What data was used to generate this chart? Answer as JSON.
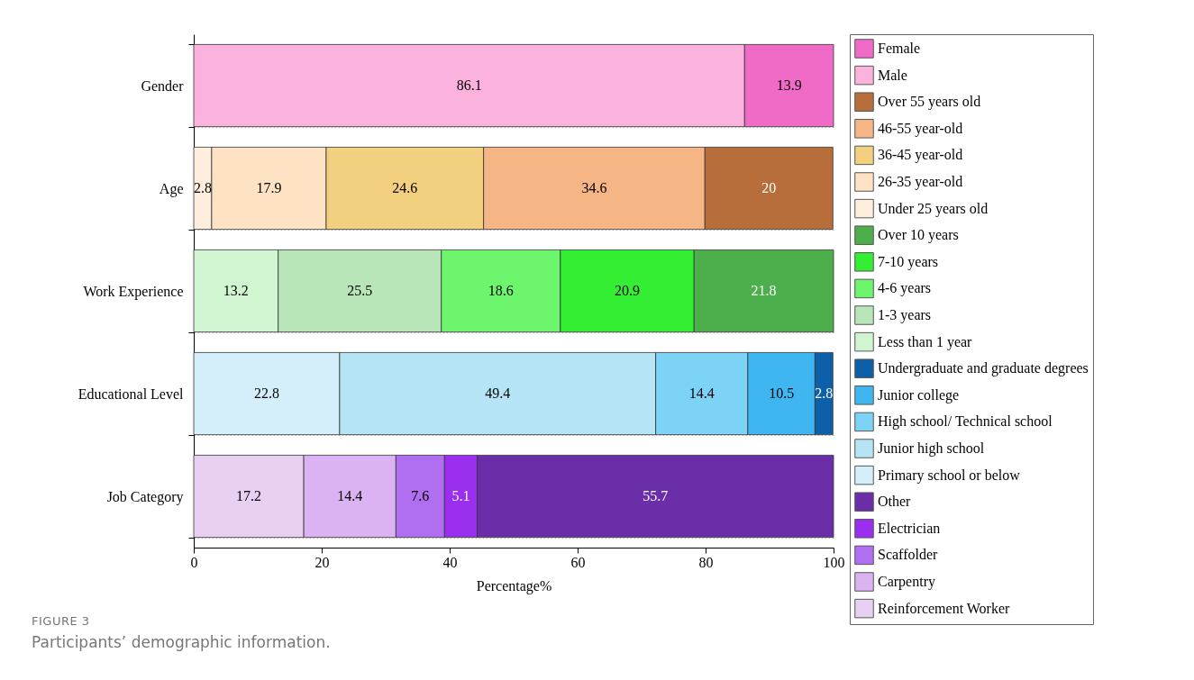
{
  "chart_data": {
    "type": "bar",
    "orientation": "horizontal",
    "stacked": true,
    "data_labels": true,
    "legend": "right",
    "grid": "y",
    "xlabel": "Percentage%",
    "categories": [
      "Gender",
      "Age",
      "Work Experience",
      "Educational Level",
      "Job Category"
    ],
    "xlim": [
      0,
      100
    ],
    "xticks": [
      0,
      20,
      40,
      60,
      80,
      100
    ],
    "annotations": [
      "FIGURE 3",
      "Participants’ demographic information."
    ],
    "series": [
      {
        "name": "Male",
        "color": "#fbb3dd",
        "values": [
          86.1,
          null,
          null,
          null,
          null
        ]
      },
      {
        "name": "Female",
        "color": "#f06bc8",
        "values": [
          13.9,
          null,
          null,
          null,
          null
        ]
      },
      {
        "name": "Under 25 years old",
        "color": "#fdeedd",
        "values": [
          null,
          2.8,
          null,
          null,
          null
        ]
      },
      {
        "name": "26-35 year-old",
        "color": "#fde3c4",
        "values": [
          null,
          17.9,
          null,
          null,
          null
        ]
      },
      {
        "name": "36-45 year-old",
        "color": "#f2d080",
        "values": [
          null,
          24.6,
          null,
          null,
          null
        ]
      },
      {
        "name": "46-55 year-old",
        "color": "#f5b585",
        "values": [
          null,
          34.6,
          null,
          null,
          null
        ]
      },
      {
        "name": "Over 55 years old",
        "color": "#b86e3a",
        "values": [
          null,
          20,
          null,
          null,
          null
        ]
      },
      {
        "name": "Less than 1 year",
        "color": "#d0f5d0",
        "values": [
          null,
          null,
          13.2,
          null,
          null
        ]
      },
      {
        "name": "1-3 years",
        "color": "#b8e6b8",
        "values": [
          null,
          null,
          25.5,
          null,
          null
        ]
      },
      {
        "name": "4-6 years",
        "color": "#6df56d",
        "values": [
          null,
          null,
          18.6,
          null,
          null
        ]
      },
      {
        "name": "7-10 years",
        "color": "#33ee33",
        "values": [
          null,
          null,
          20.9,
          null,
          null
        ]
      },
      {
        "name": "Over 10 years",
        "color": "#4caf4c",
        "values": [
          null,
          null,
          21.8,
          null,
          null
        ]
      },
      {
        "name": "Primary school or below",
        "color": "#d5effa",
        "values": [
          null,
          null,
          null,
          22.8,
          null
        ]
      },
      {
        "name": "Junior high school",
        "color": "#b5e5f5",
        "values": [
          null,
          null,
          null,
          49.4,
          null
        ]
      },
      {
        "name": "High school/ Technical school",
        "color": "#7dd3f5",
        "values": [
          null,
          null,
          null,
          14.4,
          null
        ]
      },
      {
        "name": "Junior college",
        "color": "#3fb6f0",
        "values": [
          null,
          null,
          null,
          10.5,
          null
        ]
      },
      {
        "name": "Undergraduate and graduate degrees",
        "color": "#0d5fa8",
        "values": [
          null,
          null,
          null,
          2.8,
          null
        ]
      },
      {
        "name": "Reinforcement Worker",
        "color": "#e8d0f2",
        "values": [
          null,
          null,
          null,
          null,
          17.2
        ]
      },
      {
        "name": "Carpentry",
        "color": "#dcb3f2",
        "values": [
          null,
          null,
          null,
          null,
          14.4
        ]
      },
      {
        "name": "Scaffolder",
        "color": "#b06ef0",
        "values": [
          null,
          null,
          null,
          null,
          7.6
        ]
      },
      {
        "name": "Electrician",
        "color": "#9a2ff0",
        "values": [
          null,
          null,
          null,
          null,
          5.1
        ]
      },
      {
        "name": "Other",
        "color": "#6a2ea8",
        "values": [
          null,
          null,
          null,
          null,
          55.7
        ]
      }
    ]
  }
}
